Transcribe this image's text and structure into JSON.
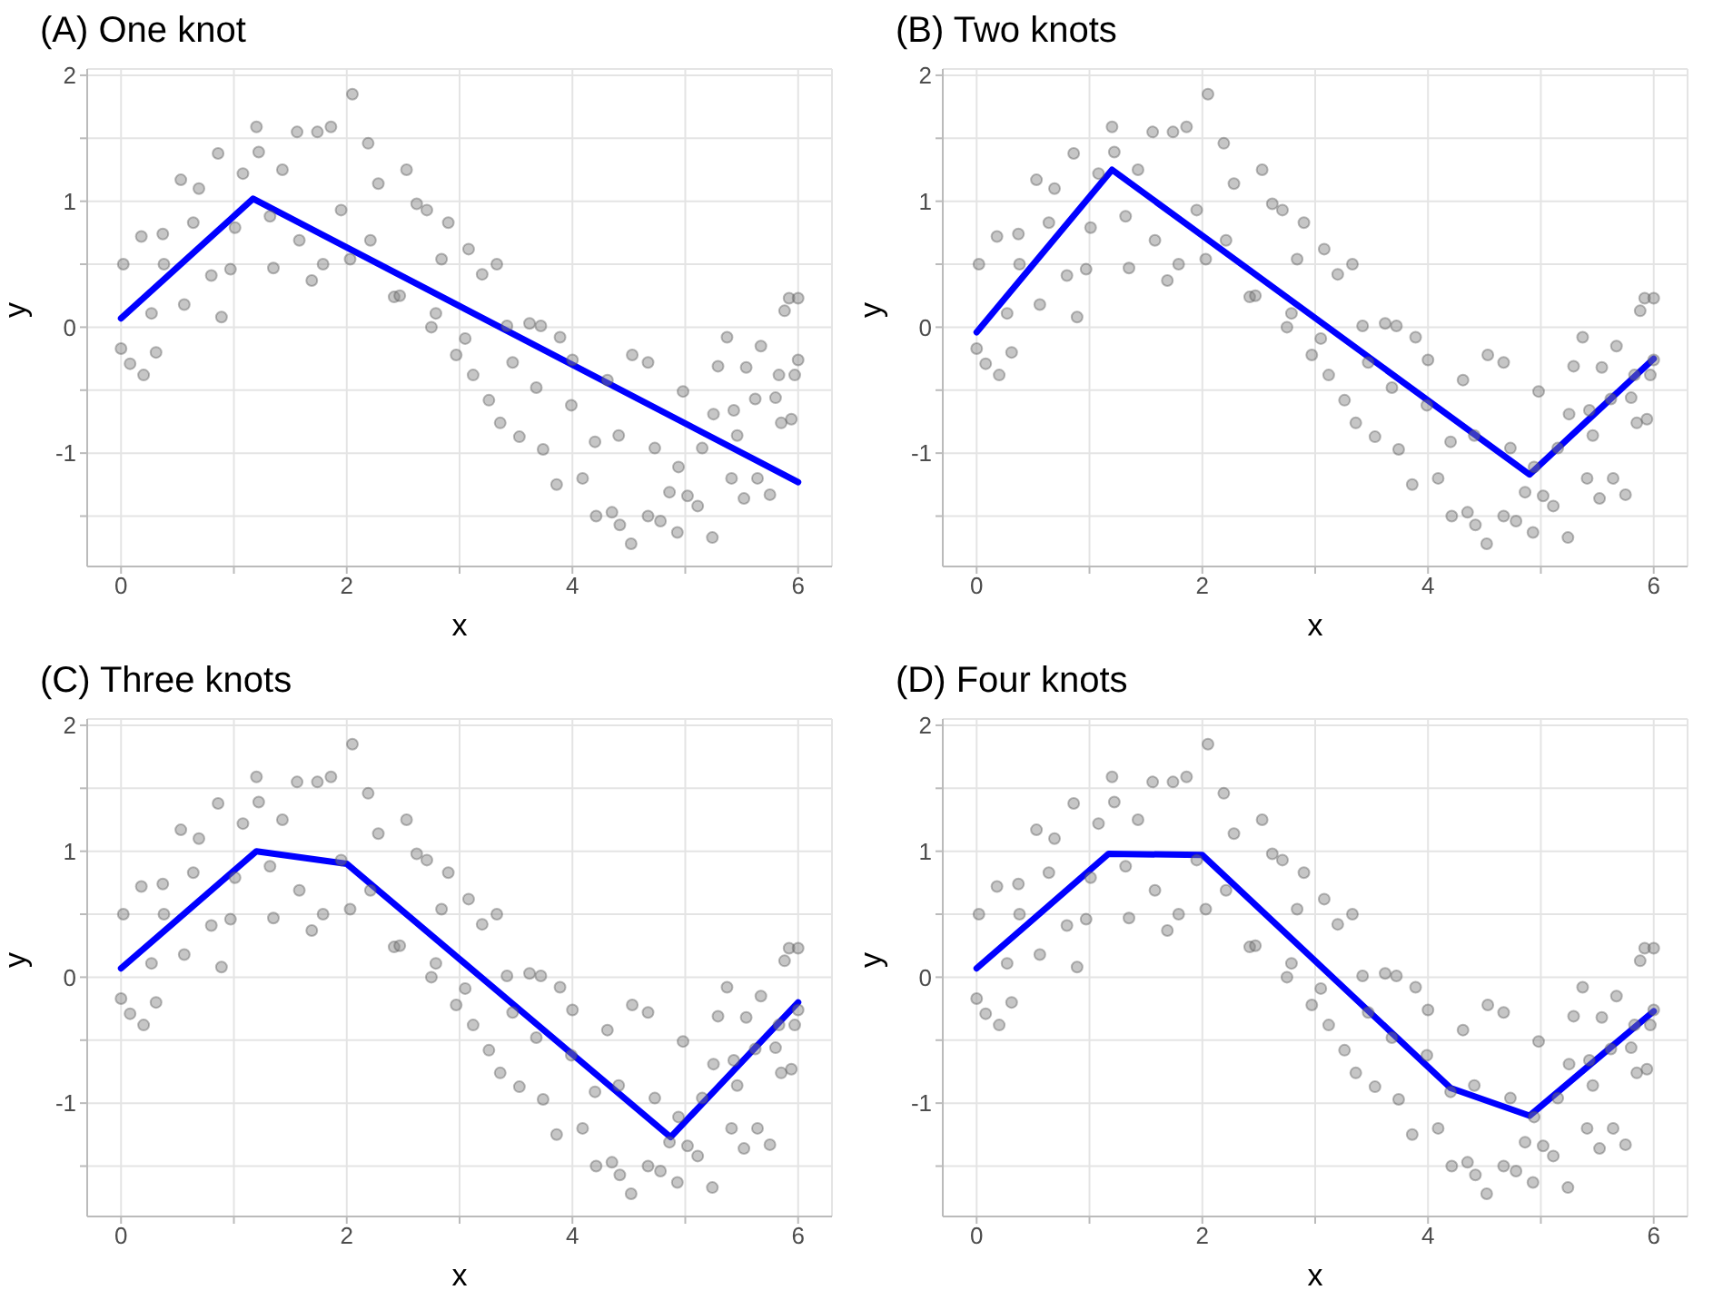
{
  "chart_data": [
    {
      "type": "scatter",
      "title": "(A) One knot",
      "xlabel": "x",
      "ylabel": "y",
      "xlim": [
        -0.3,
        6.3
      ],
      "ylim": [
        -1.9,
        2.05
      ],
      "xticks": [
        0,
        {
          "value": 1,
          "label": null
        },
        2,
        {
          "value": 3,
          "label": null
        },
        4,
        {
          "value": 5,
          "label": null
        },
        6
      ],
      "yticks": [
        {
          "value": -1.5,
          "label": null
        },
        -1,
        {
          "value": -0.5,
          "label": null
        },
        0,
        {
          "value": 0.5,
          "label": null
        },
        1,
        {
          "value": 1.5,
          "label": null
        },
        2
      ],
      "grid": true,
      "legend": false,
      "series": [
        {
          "color": "#808080",
          "x": [
            0,
            0.02,
            0.08,
            0.2,
            0.18,
            0.31,
            0.37,
            0.53,
            0.56,
            0.69,
            0.8,
            0.86,
            0.89,
            0.97,
            1.08,
            1.2,
            1.22,
            1.35,
            1.43,
            1.56,
            1.69,
            1.74,
            1.86,
            1.79,
            2.05,
            2.03,
            2.19,
            2.28,
            2.53,
            2.42,
            2.62,
            2.71,
            2.75,
            2.9,
            2.84,
            2.97,
            3.08,
            3.12,
            3.2,
            3.26,
            3.33,
            3.36,
            3.42,
            3.53,
            3.62,
            3.72,
            3.74,
            3.89,
            3.86,
            4.0,
            4.09,
            4.21,
            4.31,
            4.35,
            4.42,
            4.52,
            4.53,
            4.67,
            4.67,
            4.78,
            4.86,
            4.93,
            4.98,
            5.02,
            5.11,
            5.24,
            5.25,
            5.29,
            5.37,
            5.41,
            5.43,
            5.52,
            5.54,
            5.64,
            5.67,
            5.75,
            5.8,
            5.85,
            5.88,
            5.92,
            5.94,
            5.97,
            6.0,
            6.0,
            0.38,
            0.27,
            0.64,
            1.01,
            1.32,
            1.58,
            1.95,
            2.21,
            2.47,
            2.79,
            3.05,
            3.47,
            3.68,
            3.99,
            4.2,
            4.41,
            4.73,
            4.94,
            5.15,
            5.46,
            5.62,
            5.83
          ],
          "values": [
            -0.17,
            0.5,
            -0.29,
            -0.38,
            0.72,
            -0.2,
            0.74,
            1.17,
            0.18,
            1.1,
            0.41,
            1.38,
            0.08,
            0.46,
            1.22,
            1.59,
            1.39,
            0.47,
            1.25,
            1.55,
            0.37,
            1.55,
            1.59,
            0.5,
            1.85,
            0.54,
            1.46,
            1.14,
            1.25,
            0.24,
            0.98,
            0.93,
            0,
            0.83,
            0.54,
            -0.22,
            0.62,
            -0.38,
            0.42,
            -0.58,
            0.5,
            -0.76,
            0.01,
            -0.87,
            0.03,
            0.01,
            -0.97,
            -0.08,
            -1.25,
            -0.26,
            -1.2,
            -1.5,
            -0.42,
            -1.47,
            -1.57,
            -1.72,
            -0.22,
            -0.28,
            -1.5,
            -1.54,
            -1.31,
            -1.63,
            -0.51,
            -1.34,
            -1.42,
            -1.67,
            -0.69,
            -0.31,
            -0.08,
            -1.2,
            -0.66,
            -1.36,
            -0.32,
            -1.2,
            -0.15,
            -1.33,
            -0.56,
            -0.76,
            0.13,
            0.23,
            -0.73,
            -0.38,
            0.23,
            -0.26,
            0.5,
            0.11,
            0.83,
            0.79,
            0.88,
            0.69,
            0.93,
            0.69,
            0.25,
            0.11,
            -0.09,
            -0.28,
            -0.48,
            -0.62,
            -0.91,
            -0.86,
            -0.96,
            -1.11,
            -0.96,
            -0.86,
            -0.57,
            -0.38
          ]
        },
        {
          "type": "line",
          "color": "#0000ff",
          "x": [
            0,
            1.17,
            6
          ],
          "values": [
            0.07,
            1.02,
            -1.23
          ]
        }
      ]
    },
    {
      "type": "scatter",
      "title": "(B) Two knots",
      "xlabel": "x",
      "ylabel": "y",
      "xlim": [
        -0.3,
        6.3
      ],
      "ylim": [
        -1.9,
        2.05
      ],
      "xticks": [
        0,
        {
          "value": 1,
          "label": null
        },
        2,
        {
          "value": 3,
          "label": null
        },
        4,
        {
          "value": 5,
          "label": null
        },
        6
      ],
      "yticks": [
        {
          "value": -1.5,
          "label": null
        },
        -1,
        {
          "value": -0.5,
          "label": null
        },
        0,
        {
          "value": 0.5,
          "label": null
        },
        1,
        {
          "value": 1.5,
          "label": null
        },
        2
      ],
      "grid": true,
      "legend": false,
      "series": [
        {
          "color": "#808080",
          "x": [
            0,
            0.02,
            0.08,
            0.2,
            0.18,
            0.31,
            0.37,
            0.53,
            0.56,
            0.69,
            0.8,
            0.86,
            0.89,
            0.97,
            1.08,
            1.2,
            1.22,
            1.35,
            1.43,
            1.56,
            1.69,
            1.74,
            1.86,
            1.79,
            2.05,
            2.03,
            2.19,
            2.28,
            2.53,
            2.42,
            2.62,
            2.71,
            2.75,
            2.9,
            2.84,
            2.97,
            3.08,
            3.12,
            3.2,
            3.26,
            3.33,
            3.36,
            3.42,
            3.53,
            3.62,
            3.72,
            3.74,
            3.89,
            3.86,
            4.0,
            4.09,
            4.21,
            4.31,
            4.35,
            4.42,
            4.52,
            4.53,
            4.67,
            4.67,
            4.78,
            4.86,
            4.93,
            4.98,
            5.02,
            5.11,
            5.24,
            5.25,
            5.29,
            5.37,
            5.41,
            5.43,
            5.52,
            5.54,
            5.64,
            5.67,
            5.75,
            5.8,
            5.85,
            5.88,
            5.92,
            5.94,
            5.97,
            6.0,
            6.0,
            0.38,
            0.27,
            0.64,
            1.01,
            1.32,
            1.58,
            1.95,
            2.21,
            2.47,
            2.79,
            3.05,
            3.47,
            3.68,
            3.99,
            4.2,
            4.41,
            4.73,
            4.94,
            5.15,
            5.46,
            5.62,
            5.83
          ],
          "values": [
            -0.17,
            0.5,
            -0.29,
            -0.38,
            0.72,
            -0.2,
            0.74,
            1.17,
            0.18,
            1.1,
            0.41,
            1.38,
            0.08,
            0.46,
            1.22,
            1.59,
            1.39,
            0.47,
            1.25,
            1.55,
            0.37,
            1.55,
            1.59,
            0.5,
            1.85,
            0.54,
            1.46,
            1.14,
            1.25,
            0.24,
            0.98,
            0.93,
            0,
            0.83,
            0.54,
            -0.22,
            0.62,
            -0.38,
            0.42,
            -0.58,
            0.5,
            -0.76,
            0.01,
            -0.87,
            0.03,
            0.01,
            -0.97,
            -0.08,
            -1.25,
            -0.26,
            -1.2,
            -1.5,
            -0.42,
            -1.47,
            -1.57,
            -1.72,
            -0.22,
            -0.28,
            -1.5,
            -1.54,
            -1.31,
            -1.63,
            -0.51,
            -1.34,
            -1.42,
            -1.67,
            -0.69,
            -0.31,
            -0.08,
            -1.2,
            -0.66,
            -1.36,
            -0.32,
            -1.2,
            -0.15,
            -1.33,
            -0.56,
            -0.76,
            0.13,
            0.23,
            -0.73,
            -0.38,
            0.23,
            -0.26,
            0.5,
            0.11,
            0.83,
            0.79,
            0.88,
            0.69,
            0.93,
            0.69,
            0.25,
            0.11,
            -0.09,
            -0.28,
            -0.48,
            -0.62,
            -0.91,
            -0.86,
            -0.96,
            -1.11,
            -0.96,
            -0.86,
            -0.57,
            -0.38
          ]
        },
        {
          "type": "line",
          "color": "#0000ff",
          "x": [
            0,
            1.2,
            4.9,
            6
          ],
          "values": [
            -0.04,
            1.25,
            -1.17,
            -0.25
          ]
        }
      ]
    },
    {
      "type": "scatter",
      "title": "(C) Three knots",
      "xlabel": "x",
      "ylabel": "y",
      "xlim": [
        -0.3,
        6.3
      ],
      "ylim": [
        -1.9,
        2.05
      ],
      "xticks": [
        0,
        {
          "value": 1,
          "label": null
        },
        2,
        {
          "value": 3,
          "label": null
        },
        4,
        {
          "value": 5,
          "label": null
        },
        6
      ],
      "yticks": [
        {
          "value": -1.5,
          "label": null
        },
        -1,
        {
          "value": -0.5,
          "label": null
        },
        0,
        {
          "value": 0.5,
          "label": null
        },
        1,
        {
          "value": 1.5,
          "label": null
        },
        2
      ],
      "grid": true,
      "legend": false,
      "series": [
        {
          "color": "#808080",
          "x": [
            0,
            0.02,
            0.08,
            0.2,
            0.18,
            0.31,
            0.37,
            0.53,
            0.56,
            0.69,
            0.8,
            0.86,
            0.89,
            0.97,
            1.08,
            1.2,
            1.22,
            1.35,
            1.43,
            1.56,
            1.69,
            1.74,
            1.86,
            1.79,
            2.05,
            2.03,
            2.19,
            2.28,
            2.53,
            2.42,
            2.62,
            2.71,
            2.75,
            2.9,
            2.84,
            2.97,
            3.08,
            3.12,
            3.2,
            3.26,
            3.33,
            3.36,
            3.42,
            3.53,
            3.62,
            3.72,
            3.74,
            3.89,
            3.86,
            4.0,
            4.09,
            4.21,
            4.31,
            4.35,
            4.42,
            4.52,
            4.53,
            4.67,
            4.67,
            4.78,
            4.86,
            4.93,
            4.98,
            5.02,
            5.11,
            5.24,
            5.25,
            5.29,
            5.37,
            5.41,
            5.43,
            5.52,
            5.54,
            5.64,
            5.67,
            5.75,
            5.8,
            5.85,
            5.88,
            5.92,
            5.94,
            5.97,
            6.0,
            6.0,
            0.38,
            0.27,
            0.64,
            1.01,
            1.32,
            1.58,
            1.95,
            2.21,
            2.47,
            2.79,
            3.05,
            3.47,
            3.68,
            3.99,
            4.2,
            4.41,
            4.73,
            4.94,
            5.15,
            5.46,
            5.62,
            5.83
          ],
          "values": [
            -0.17,
            0.5,
            -0.29,
            -0.38,
            0.72,
            -0.2,
            0.74,
            1.17,
            0.18,
            1.1,
            0.41,
            1.38,
            0.08,
            0.46,
            1.22,
            1.59,
            1.39,
            0.47,
            1.25,
            1.55,
            0.37,
            1.55,
            1.59,
            0.5,
            1.85,
            0.54,
            1.46,
            1.14,
            1.25,
            0.24,
            0.98,
            0.93,
            0,
            0.83,
            0.54,
            -0.22,
            0.62,
            -0.38,
            0.42,
            -0.58,
            0.5,
            -0.76,
            0.01,
            -0.87,
            0.03,
            0.01,
            -0.97,
            -0.08,
            -1.25,
            -0.26,
            -1.2,
            -1.5,
            -0.42,
            -1.47,
            -1.57,
            -1.72,
            -0.22,
            -0.28,
            -1.5,
            -1.54,
            -1.31,
            -1.63,
            -0.51,
            -1.34,
            -1.42,
            -1.67,
            -0.69,
            -0.31,
            -0.08,
            -1.2,
            -0.66,
            -1.36,
            -0.32,
            -1.2,
            -0.15,
            -1.33,
            -0.56,
            -0.76,
            0.13,
            0.23,
            -0.73,
            -0.38,
            0.23,
            -0.26,
            0.5,
            0.11,
            0.83,
            0.79,
            0.88,
            0.69,
            0.93,
            0.69,
            0.25,
            0.11,
            -0.09,
            -0.28,
            -0.48,
            -0.62,
            -0.91,
            -0.86,
            -0.96,
            -1.11,
            -0.96,
            -0.86,
            -0.57,
            -0.38
          ]
        },
        {
          "type": "line",
          "color": "#0000ff",
          "x": [
            0,
            1.2,
            2,
            4.87,
            6
          ],
          "values": [
            0.07,
            1.0,
            0.9,
            -1.27,
            -0.2
          ]
        }
      ]
    },
    {
      "type": "scatter",
      "title": "(D) Four knots",
      "xlabel": "x",
      "ylabel": "y",
      "xlim": [
        -0.3,
        6.3
      ],
      "ylim": [
        -1.9,
        2.05
      ],
      "xticks": [
        0,
        {
          "value": 1,
          "label": null
        },
        2,
        {
          "value": 3,
          "label": null
        },
        4,
        {
          "value": 5,
          "label": null
        },
        6
      ],
      "yticks": [
        {
          "value": -1.5,
          "label": null
        },
        -1,
        {
          "value": -0.5,
          "label": null
        },
        0,
        {
          "value": 0.5,
          "label": null
        },
        1,
        {
          "value": 1.5,
          "label": null
        },
        2
      ],
      "grid": true,
      "legend": false,
      "series": [
        {
          "color": "#808080",
          "x": [
            0,
            0.02,
            0.08,
            0.2,
            0.18,
            0.31,
            0.37,
            0.53,
            0.56,
            0.69,
            0.8,
            0.86,
            0.89,
            0.97,
            1.08,
            1.2,
            1.22,
            1.35,
            1.43,
            1.56,
            1.69,
            1.74,
            1.86,
            1.79,
            2.05,
            2.03,
            2.19,
            2.28,
            2.53,
            2.42,
            2.62,
            2.71,
            2.75,
            2.9,
            2.84,
            2.97,
            3.08,
            3.12,
            3.2,
            3.26,
            3.33,
            3.36,
            3.42,
            3.53,
            3.62,
            3.72,
            3.74,
            3.89,
            3.86,
            4.0,
            4.09,
            4.21,
            4.31,
            4.35,
            4.42,
            4.52,
            4.53,
            4.67,
            4.67,
            4.78,
            4.86,
            4.93,
            4.98,
            5.02,
            5.11,
            5.24,
            5.25,
            5.29,
            5.37,
            5.41,
            5.43,
            5.52,
            5.54,
            5.64,
            5.67,
            5.75,
            5.8,
            5.85,
            5.88,
            5.92,
            5.94,
            5.97,
            6.0,
            6.0,
            0.38,
            0.27,
            0.64,
            1.01,
            1.32,
            1.58,
            1.95,
            2.21,
            2.47,
            2.79,
            3.05,
            3.47,
            3.68,
            3.99,
            4.2,
            4.41,
            4.73,
            4.94,
            5.15,
            5.46,
            5.62,
            5.83
          ],
          "values": [
            -0.17,
            0.5,
            -0.29,
            -0.38,
            0.72,
            -0.2,
            0.74,
            1.17,
            0.18,
            1.1,
            0.41,
            1.38,
            0.08,
            0.46,
            1.22,
            1.59,
            1.39,
            0.47,
            1.25,
            1.55,
            0.37,
            1.55,
            1.59,
            0.5,
            1.85,
            0.54,
            1.46,
            1.14,
            1.25,
            0.24,
            0.98,
            0.93,
            0,
            0.83,
            0.54,
            -0.22,
            0.62,
            -0.38,
            0.42,
            -0.58,
            0.5,
            -0.76,
            0.01,
            -0.87,
            0.03,
            0.01,
            -0.97,
            -0.08,
            -1.25,
            -0.26,
            -1.2,
            -1.5,
            -0.42,
            -1.47,
            -1.57,
            -1.72,
            -0.22,
            -0.28,
            -1.5,
            -1.54,
            -1.31,
            -1.63,
            -0.51,
            -1.34,
            -1.42,
            -1.67,
            -0.69,
            -0.31,
            -0.08,
            -1.2,
            -0.66,
            -1.36,
            -0.32,
            -1.2,
            -0.15,
            -1.33,
            -0.56,
            -0.76,
            0.13,
            0.23,
            -0.73,
            -0.38,
            0.23,
            -0.26,
            0.5,
            0.11,
            0.83,
            0.79,
            0.88,
            0.69,
            0.93,
            0.69,
            0.25,
            0.11,
            -0.09,
            -0.28,
            -0.48,
            -0.62,
            -0.91,
            -0.86,
            -0.96,
            -1.11,
            -0.96,
            -0.86,
            -0.57,
            -0.38
          ]
        },
        {
          "type": "line",
          "color": "#0000ff",
          "x": [
            0,
            1.17,
            2,
            4.2,
            4.9,
            6
          ],
          "values": [
            0.07,
            0.98,
            0.97,
            -0.88,
            -1.1,
            -0.27
          ]
        }
      ]
    }
  ]
}
